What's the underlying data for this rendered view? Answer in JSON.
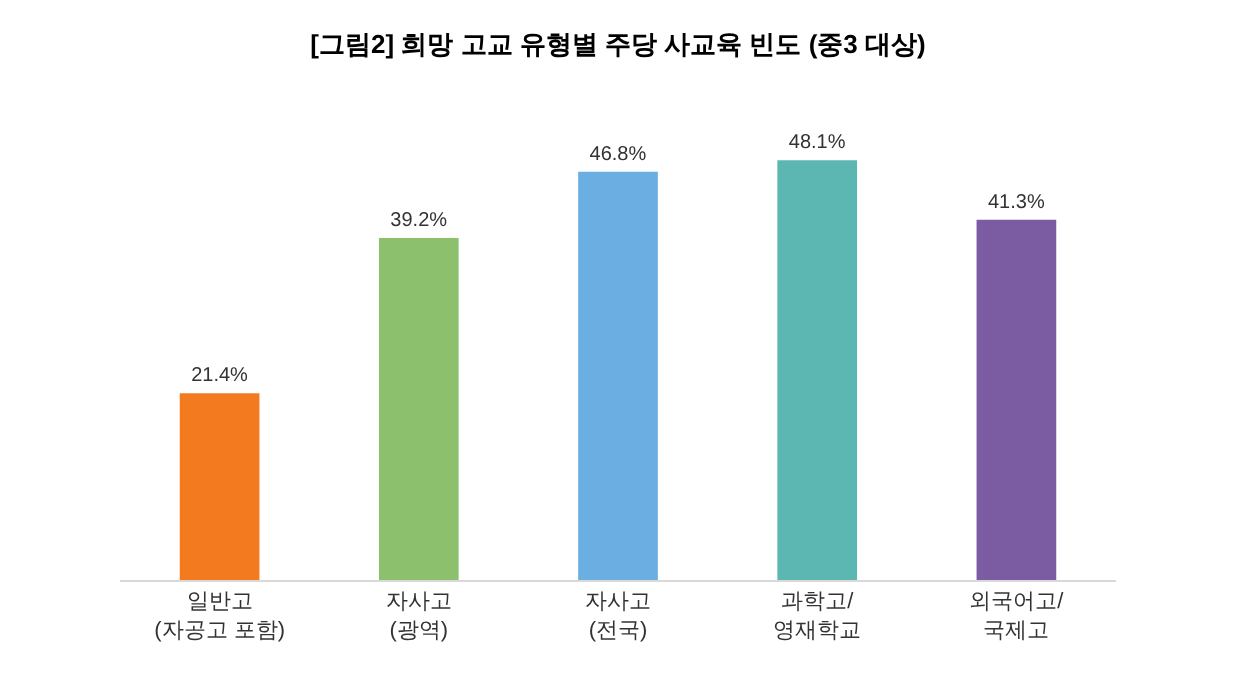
{
  "chart_data": {
    "type": "bar",
    "title": "[그림2] 희망 고교 유형별 주당 사교육 빈도 (중3 대상)",
    "categories": [
      "일반고\n(자공고 포함)",
      "자사고\n(광역)",
      "자사고\n(전국)",
      "과학고/\n영재학교",
      "외국어고/\n국제고"
    ],
    "values": [
      21.4,
      39.2,
      46.8,
      48.1,
      41.3
    ],
    "value_labels": [
      "21.4%",
      "39.2%",
      "46.8%",
      "48.1%",
      "41.3%"
    ],
    "colors": [
      "#f47a20",
      "#8dc06c",
      "#6aaee2",
      "#5cb7b2",
      "#7b5ca2"
    ],
    "grid": false,
    "legend": false
  }
}
